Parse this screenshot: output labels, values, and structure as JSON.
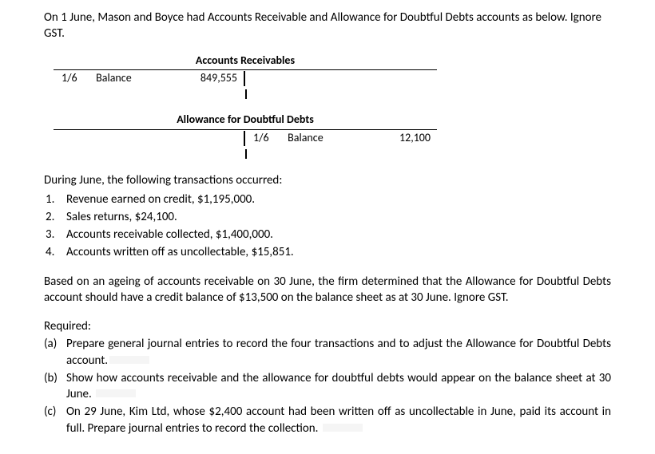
{
  "intro": "On 1 June, Mason and Boyce had Accounts Receivable and Allowance for Doubtful Debts accounts as below. Ignore GST.",
  "taccount1": {
    "title": "Accounts Receivables",
    "left": {
      "date": "1/6",
      "desc": "Balance",
      "amount": "849,555"
    },
    "right": {
      "date": "",
      "desc": "",
      "amount": ""
    }
  },
  "taccount2": {
    "title": "Allowance for Doubtful Debts",
    "left": {
      "date": "",
      "desc": "",
      "amount": ""
    },
    "right": {
      "date": "1/6",
      "desc": "Balance",
      "amount": "12,100"
    }
  },
  "during": "During June, the following transactions occurred:",
  "transactions": {
    "n1": "1.",
    "t1": "Revenue earned on credit, $1,195,000.",
    "n2": "2.",
    "t2": "Sales returns, $24,100.",
    "n3": "3.",
    "t3": "Accounts receivable collected, $1,400,000.",
    "n4": "4.",
    "t4": "Accounts written off as uncollectable, $15,851."
  },
  "ageing": "Based on an ageing of accounts receivable on 30 June, the firm determined that the Allowance for Doubtful Debts account should have a credit balance of $13,500 on the balance sheet as at 30 June. Ignore GST.",
  "required": "Required:",
  "reqA": {
    "letter": "(a)",
    "text": "Prepare general journal entries to record the four transactions and to adjust the Allowance for Doubtful Debts account."
  },
  "reqB": {
    "letter": "(b)",
    "text": "Show how accounts receivable and the allowance for doubtful debts would appear on the balance sheet at 30 June."
  },
  "reqC": {
    "letter": "(c)",
    "text": "On 29 June, Kim Ltd, whose $2,400 account had been written off as uncollectable in June, paid its account in full. Prepare journal entries to record the collection."
  }
}
